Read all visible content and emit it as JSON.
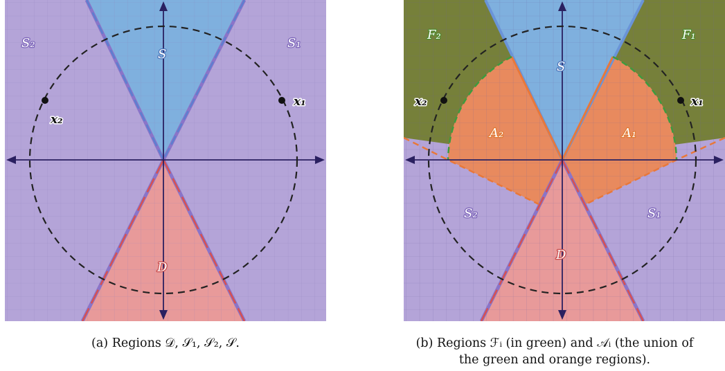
{
  "panel_a": {
    "caption": "(a) Regions 𝒟, 𝒮₁, 𝒮₂, 𝒮.",
    "labels": {
      "S": "S",
      "S1": "S₁",
      "S2": "S₂",
      "D": "D",
      "x1": "x₁",
      "x2": "x₂"
    }
  },
  "panel_b": {
    "caption_line1": "(b) Regions ℱᵢ (in green) and 𝒜ᵢ (the union of",
    "caption_line2": "the green and orange regions).",
    "labels": {
      "S": "S",
      "S1": "S₁",
      "S2": "S₂",
      "D": "D",
      "F1": "F₁",
      "F2": "F₂",
      "A1": "A₁",
      "A2": "A₂",
      "x1": "x₁",
      "x2": "x₂"
    }
  },
  "colors": {
    "purple": "#b4a4d8",
    "blue": "#7fb0de",
    "red": "#e89a9a",
    "green": "#76803a",
    "orange": "#e88a5e",
    "axis": "#2a2060",
    "circle": "#222222"
  }
}
